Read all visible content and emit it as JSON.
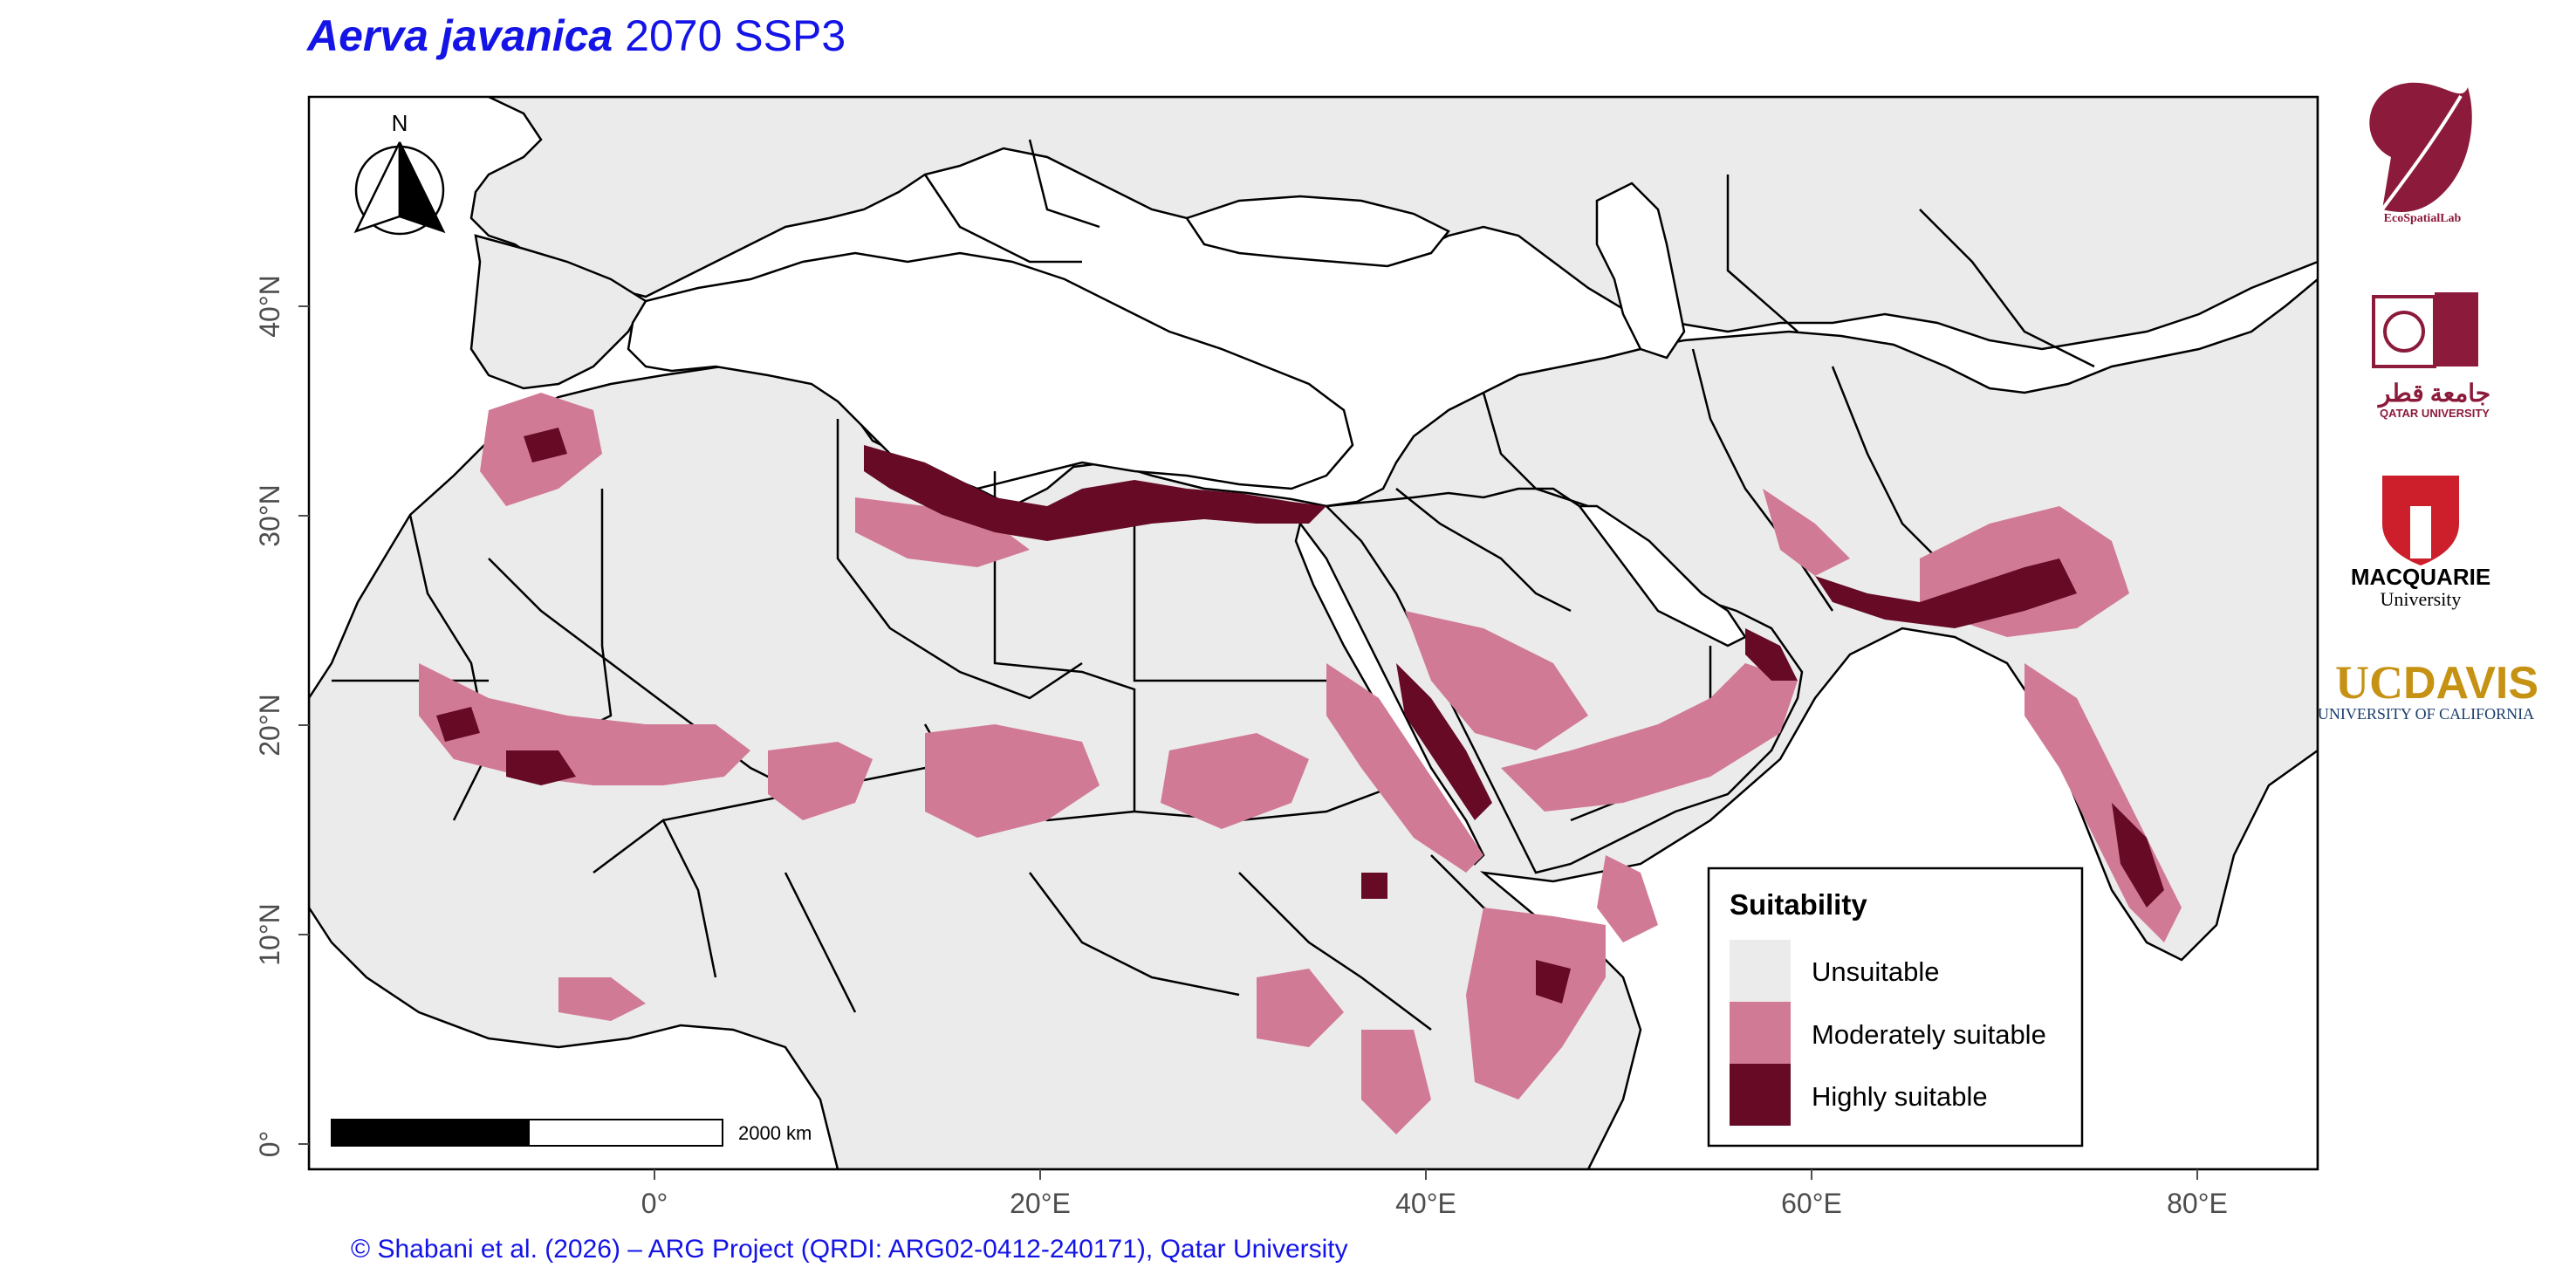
{
  "title": {
    "species": "Aerva javanica",
    "scenario": "2070 SSP3"
  },
  "map": {
    "x_ticks": [
      "0°",
      "20°E",
      "40°E",
      "60°E",
      "80°E"
    ],
    "y_ticks": [
      "0°",
      "10°N",
      "20°N",
      "30°N",
      "40°N"
    ],
    "north_label": "N",
    "scale_bar_label": "2000 km"
  },
  "legend": {
    "title": "Suitability",
    "items": [
      {
        "label": "Unsuitable",
        "color": "#ebebeb"
      },
      {
        "label": "Moderately suitable",
        "color": "#d17a96"
      },
      {
        "label": "Highly suitable",
        "color": "#660a26"
      }
    ]
  },
  "logos": {
    "ecospatial": "EcoSpatialLab",
    "qatar_ar": "جامعة قطر",
    "qatar_en": "QATAR UNIVERSITY",
    "macquarie_1": "MACQUARIE",
    "macquarie_2": "University",
    "ucdavis_1": "UC",
    "ucdavis_2": "DAVIS",
    "ucdavis_3": "UNIVERSITY OF CALIFORNIA"
  },
  "credit": "© Shabani et al. (2026) – ARG Project (QRDI: ARG02-0412-240171), Qatar University"
}
